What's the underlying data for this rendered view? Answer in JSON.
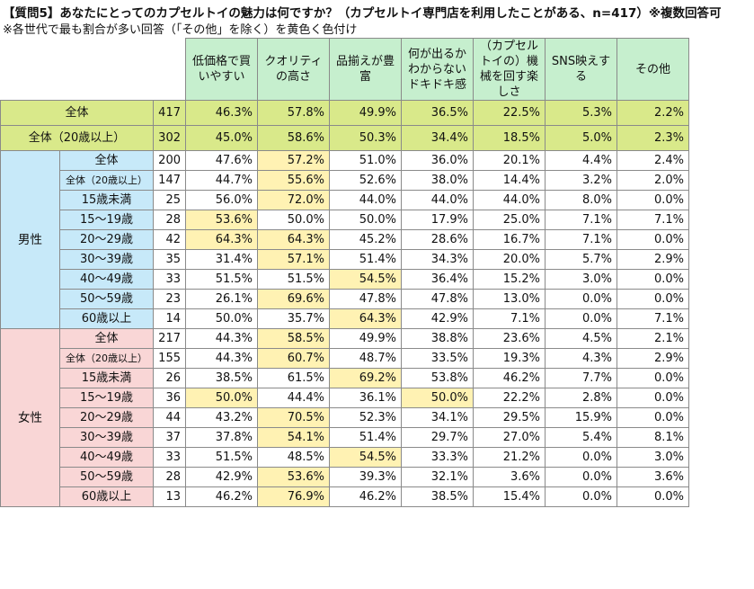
{
  "title": "【質問5】あなたにとってのカプセルトイの魅力は何ですか？（カプセルトイ専門店を利用したことがある、n=417）※複数回答可",
  "subtitle": "※各世代で最も割合が多い回答（「その他」を除く）を黄色く色付け",
  "colors": {
    "header": "#c6efce",
    "total_row": "#d9e98a",
    "male": "#c7e9f9",
    "female": "#f9d6d6",
    "highlight": "#fff2b3"
  },
  "chart_data": {
    "type": "table",
    "title": "【質問5】あなたにとってのカプセルトイの魅力は何ですか？（カプセルトイ専門店を利用したことがある、n=417）※複数回答可",
    "columns": [
      "低価格で買いやすい",
      "クオリティの高さ",
      "品揃えが豊富",
      "何が出るかわからないドキドキ感",
      "（カプセルトイの）機械を回す楽しさ",
      "SNS映えする",
      "その他"
    ],
    "rows": [
      {
        "group": "",
        "label": "全体",
        "n": "417",
        "values": [
          "46.3%",
          "57.8%",
          "49.9%",
          "36.5%",
          "22.5%",
          "5.3%",
          "2.2%"
        ],
        "hl": []
      },
      {
        "group": "",
        "label": "全体（20歳以上）",
        "n": "302",
        "values": [
          "45.0%",
          "58.6%",
          "50.3%",
          "34.4%",
          "18.5%",
          "5.0%",
          "2.3%"
        ],
        "hl": []
      },
      {
        "group": "男性",
        "label": "全体",
        "n": "200",
        "values": [
          "47.6%",
          "57.2%",
          "51.0%",
          "36.0%",
          "20.1%",
          "4.4%",
          "2.4%"
        ],
        "hl": [
          1
        ]
      },
      {
        "group": "男性",
        "label": "全体（20歳以上）",
        "n": "147",
        "values": [
          "44.7%",
          "55.6%",
          "52.6%",
          "38.0%",
          "14.4%",
          "3.2%",
          "2.0%"
        ],
        "hl": [
          1
        ]
      },
      {
        "group": "男性",
        "label": "15歳未満",
        "n": "25",
        "values": [
          "56.0%",
          "72.0%",
          "44.0%",
          "44.0%",
          "44.0%",
          "8.0%",
          "0.0%"
        ],
        "hl": [
          1
        ]
      },
      {
        "group": "男性",
        "label": "15～19歳",
        "n": "28",
        "values": [
          "53.6%",
          "50.0%",
          "50.0%",
          "17.9%",
          "25.0%",
          "7.1%",
          "7.1%"
        ],
        "hl": [
          0
        ]
      },
      {
        "group": "男性",
        "label": "20～29歳",
        "n": "42",
        "values": [
          "64.3%",
          "64.3%",
          "45.2%",
          "28.6%",
          "16.7%",
          "7.1%",
          "0.0%"
        ],
        "hl": [
          0,
          1
        ]
      },
      {
        "group": "男性",
        "label": "30～39歳",
        "n": "35",
        "values": [
          "31.4%",
          "57.1%",
          "51.4%",
          "34.3%",
          "20.0%",
          "5.7%",
          "2.9%"
        ],
        "hl": [
          1
        ]
      },
      {
        "group": "男性",
        "label": "40～49歳",
        "n": "33",
        "values": [
          "51.5%",
          "51.5%",
          "54.5%",
          "36.4%",
          "15.2%",
          "3.0%",
          "0.0%"
        ],
        "hl": [
          2
        ]
      },
      {
        "group": "男性",
        "label": "50～59歳",
        "n": "23",
        "values": [
          "26.1%",
          "69.6%",
          "47.8%",
          "47.8%",
          "13.0%",
          "0.0%",
          "0.0%"
        ],
        "hl": [
          1
        ]
      },
      {
        "group": "男性",
        "label": "60歳以上",
        "n": "14",
        "values": [
          "50.0%",
          "35.7%",
          "64.3%",
          "42.9%",
          "7.1%",
          "0.0%",
          "7.1%"
        ],
        "hl": [
          2
        ]
      },
      {
        "group": "女性",
        "label": "全体",
        "n": "217",
        "values": [
          "44.3%",
          "58.5%",
          "49.9%",
          "38.8%",
          "23.6%",
          "4.5%",
          "2.1%"
        ],
        "hl": [
          1
        ]
      },
      {
        "group": "女性",
        "label": "全体（20歳以上）",
        "n": "155",
        "values": [
          "44.3%",
          "60.7%",
          "48.7%",
          "33.5%",
          "19.3%",
          "4.3%",
          "2.9%"
        ],
        "hl": [
          1
        ]
      },
      {
        "group": "女性",
        "label": "15歳未満",
        "n": "26",
        "values": [
          "38.5%",
          "61.5%",
          "69.2%",
          "53.8%",
          "46.2%",
          "7.7%",
          "0.0%"
        ],
        "hl": [
          2
        ]
      },
      {
        "group": "女性",
        "label": "15～19歳",
        "n": "36",
        "values": [
          "50.0%",
          "44.4%",
          "36.1%",
          "50.0%",
          "22.2%",
          "2.8%",
          "0.0%"
        ],
        "hl": [
          0,
          3
        ]
      },
      {
        "group": "女性",
        "label": "20～29歳",
        "n": "44",
        "values": [
          "43.2%",
          "70.5%",
          "52.3%",
          "34.1%",
          "29.5%",
          "15.9%",
          "0.0%"
        ],
        "hl": [
          1
        ]
      },
      {
        "group": "女性",
        "label": "30～39歳",
        "n": "37",
        "values": [
          "37.8%",
          "54.1%",
          "51.4%",
          "29.7%",
          "27.0%",
          "5.4%",
          "8.1%"
        ],
        "hl": [
          1
        ]
      },
      {
        "group": "女性",
        "label": "40～49歳",
        "n": "33",
        "values": [
          "51.5%",
          "48.5%",
          "54.5%",
          "33.3%",
          "21.2%",
          "0.0%",
          "3.0%"
        ],
        "hl": [
          2
        ]
      },
      {
        "group": "女性",
        "label": "50～59歳",
        "n": "28",
        "values": [
          "42.9%",
          "53.6%",
          "39.3%",
          "32.1%",
          "3.6%",
          "0.0%",
          "3.6%"
        ],
        "hl": [
          1
        ]
      },
      {
        "group": "女性",
        "label": "60歳以上",
        "n": "13",
        "values": [
          "46.2%",
          "76.9%",
          "46.2%",
          "38.5%",
          "15.4%",
          "0.0%",
          "0.0%"
        ],
        "hl": [
          1
        ]
      }
    ]
  }
}
